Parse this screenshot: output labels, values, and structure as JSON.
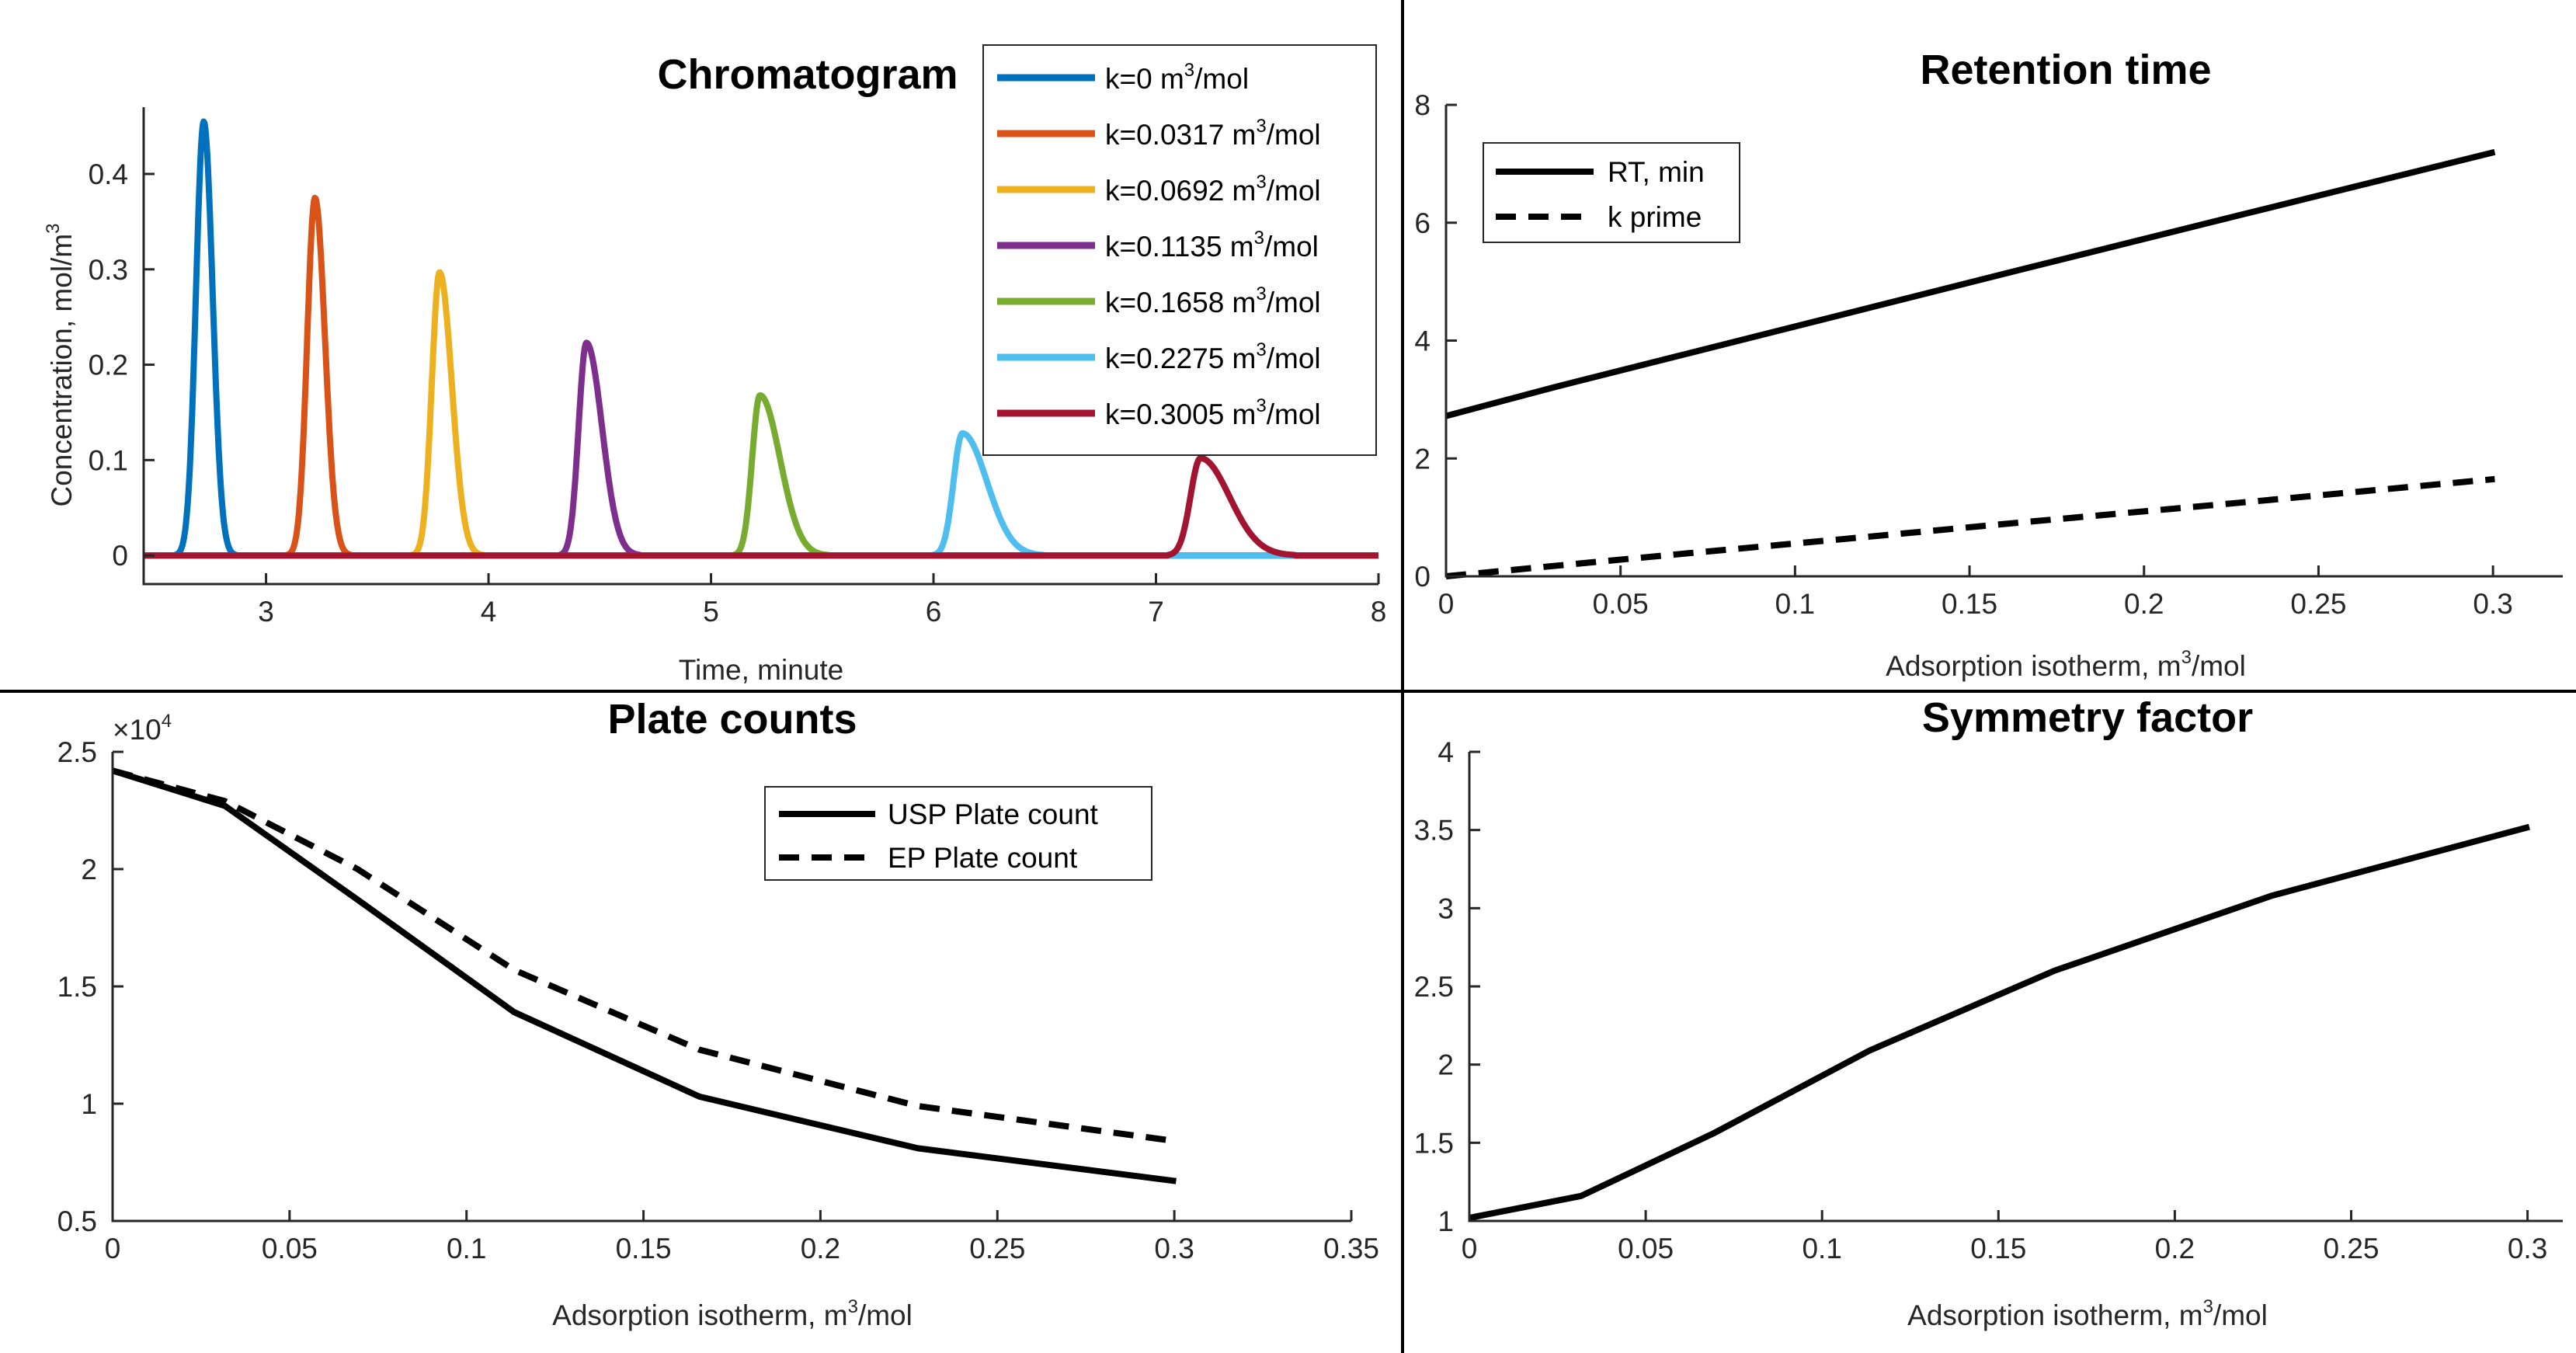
{
  "chart_data": [
    {
      "id": "chromatogram",
      "type": "line",
      "title": "Chromatogram",
      "xlabel": "Time, minute",
      "ylabel": "Concentration, mol/m³",
      "xlim": [
        2.45,
        8.0
      ],
      "ylim": [
        -0.03,
        0.47
      ],
      "xticks": [
        3,
        4,
        5,
        6,
        7,
        8
      ],
      "xtick_labels": [
        "3",
        "4",
        "5",
        "6",
        "7",
        "8"
      ],
      "yticks": [
        0,
        0.1,
        0.2,
        0.3,
        0.4
      ],
      "ytick_labels": [
        "0",
        "0.1",
        "0.2",
        "0.3",
        "0.4"
      ],
      "legend_position": "top-right",
      "series": [
        {
          "name": "k=0 m³/mol",
          "name_base": "k=0 m",
          "name_sup": "3",
          "name_tail": "/mol",
          "color": "#0072BD",
          "peak_time": 2.72,
          "peak_height": 0.455,
          "sigma_left": 0.035,
          "sigma_right": 0.04,
          "tail": 0.0
        },
        {
          "name": "k=0.0317 m³/mol",
          "name_base": "k=0.0317 m",
          "name_sup": "3",
          "name_tail": "/mol",
          "color": "#D95319",
          "peak_time": 3.22,
          "peak_height": 0.375,
          "sigma_left": 0.035,
          "sigma_right": 0.045,
          "tail": 0.01
        },
        {
          "name": "k=0.0692 m³/mol",
          "name_base": "k=0.0692 m",
          "name_sup": "3",
          "name_tail": "/mol",
          "color": "#EDB120",
          "peak_time": 3.78,
          "peak_height": 0.297,
          "sigma_left": 0.035,
          "sigma_right": 0.055,
          "tail": 0.02
        },
        {
          "name": "k=0.1135 m³/mol",
          "name_base": "k=0.1135 m",
          "name_sup": "3",
          "name_tail": "/mol",
          "color": "#7E2F8E",
          "peak_time": 4.44,
          "peak_height": 0.223,
          "sigma_left": 0.035,
          "sigma_right": 0.07,
          "tail": 0.03
        },
        {
          "name": "k=0.1658 m³/mol",
          "name_base": "k=0.1658 m",
          "name_sup": "3",
          "name_tail": "/mol",
          "color": "#77AC30",
          "peak_time": 5.22,
          "peak_height": 0.168,
          "sigma_left": 0.035,
          "sigma_right": 0.09,
          "tail": 0.04
        },
        {
          "name": "k=0.2275 m³/mol",
          "name_base": "k=0.2275 m",
          "name_sup": "3",
          "name_tail": "/mol",
          "color": "#4DBEEE",
          "peak_time": 6.13,
          "peak_height": 0.128,
          "sigma_left": 0.04,
          "sigma_right": 0.11,
          "tail": 0.05
        },
        {
          "name": "k=0.3005 m³/mol",
          "name_base": "k=0.3005 m",
          "name_sup": "3",
          "name_tail": "/mol",
          "color": "#A2142F",
          "peak_time": 7.2,
          "peak_height": 0.102,
          "sigma_left": 0.045,
          "sigma_right": 0.13,
          "tail": 0.06
        }
      ]
    },
    {
      "id": "retention",
      "type": "line",
      "title": "Retention time",
      "xlabel": "Adsorption isotherm, m³/mol",
      "ylabel": "",
      "xlim": [
        0,
        0.32
      ],
      "ylim": [
        0,
        8
      ],
      "xticks": [
        0,
        0.05,
        0.1,
        0.15,
        0.2,
        0.25,
        0.3
      ],
      "xtick_labels": [
        "0",
        "0.05",
        "0.1",
        "0.15",
        "0.2",
        "0.25",
        "0.3"
      ],
      "yticks": [
        0,
        2,
        4,
        6,
        8
      ],
      "ytick_labels": [
        "0",
        "2",
        "4",
        "6",
        "8"
      ],
      "legend_position": "top-left",
      "series": [
        {
          "name": "RT, min",
          "style": "solid",
          "x": [
            0,
            0.0317,
            0.0692,
            0.1135,
            0.1658,
            0.2275,
            0.3005
          ],
          "y": [
            2.72,
            3.22,
            3.78,
            4.44,
            5.22,
            6.13,
            7.2
          ]
        },
        {
          "name": "k prime",
          "style": "dashed",
          "x": [
            0,
            0.0317,
            0.0692,
            0.1135,
            0.1658,
            0.2275,
            0.3005
          ],
          "y": [
            0,
            0.18,
            0.39,
            0.63,
            0.92,
            1.25,
            1.65
          ]
        }
      ]
    },
    {
      "id": "plates",
      "type": "line",
      "title": "Plate counts",
      "xlabel": "Adsorption isotherm, m³/mol",
      "ylabel": "",
      "exponent_label": "×10",
      "exponent_power": "4",
      "xlim": [
        0,
        0.35
      ],
      "ylim": [
        0.5,
        2.5
      ],
      "xticks": [
        0,
        0.05,
        0.1,
        0.15,
        0.2,
        0.25,
        0.3,
        0.35
      ],
      "xtick_labels": [
        "0",
        "0.05",
        "0.1",
        "0.15",
        "0.2",
        "0.25",
        "0.3",
        "0.35"
      ],
      "yticks": [
        0.5,
        1,
        1.5,
        2,
        2.5
      ],
      "ytick_labels": [
        "0.5",
        "1",
        "1.5",
        "2",
        "2.5"
      ],
      "legend_position": "top-right",
      "series": [
        {
          "name": "USP Plate count",
          "style": "solid",
          "x": [
            0,
            0.0317,
            0.0692,
            0.1135,
            0.1658,
            0.2275,
            0.3005
          ],
          "y": [
            2.42,
            2.27,
            1.87,
            1.39,
            1.03,
            0.81,
            0.67
          ]
        },
        {
          "name": "EP Plate count",
          "style": "dashed",
          "x": [
            0,
            0.0317,
            0.0692,
            0.1135,
            0.1658,
            0.2275,
            0.3005
          ],
          "y": [
            2.42,
            2.29,
            2.0,
            1.57,
            1.23,
            0.99,
            0.84
          ]
        }
      ]
    },
    {
      "id": "symmetry",
      "type": "line",
      "title": "Symmetry factor",
      "xlabel": "Adsorption isotherm, m³/mol",
      "ylabel": "",
      "xlim": [
        0,
        0.31
      ],
      "ylim": [
        1,
        4
      ],
      "xticks": [
        0,
        0.05,
        0.1,
        0.15,
        0.2,
        0.25,
        0.3
      ],
      "xtick_labels": [
        "0",
        "0.05",
        "0.1",
        "0.15",
        "0.2",
        "0.25",
        "0.3"
      ],
      "yticks": [
        1,
        1.5,
        2,
        2.5,
        3,
        3.5,
        4
      ],
      "ytick_labels": [
        "1",
        "1.5",
        "2",
        "2.5",
        "3",
        "3.5",
        "4"
      ],
      "series": [
        {
          "name": "Symmetry factor",
          "style": "solid",
          "x": [
            0,
            0.0317,
            0.0692,
            0.1135,
            0.1658,
            0.2275,
            0.3005
          ],
          "y": [
            1.02,
            1.16,
            1.56,
            2.09,
            2.6,
            3.08,
            3.52
          ]
        }
      ]
    }
  ],
  "axis_label_parts": {
    "conc_base": "Concentration, mol/m",
    "conc_sup": "3",
    "iso_base": "Adsorption isotherm, m",
    "iso_sup": "3",
    "iso_tail": "/mol"
  },
  "colors": {
    "foreground": "#000000",
    "axis": "#262626",
    "divider": "#000000"
  }
}
